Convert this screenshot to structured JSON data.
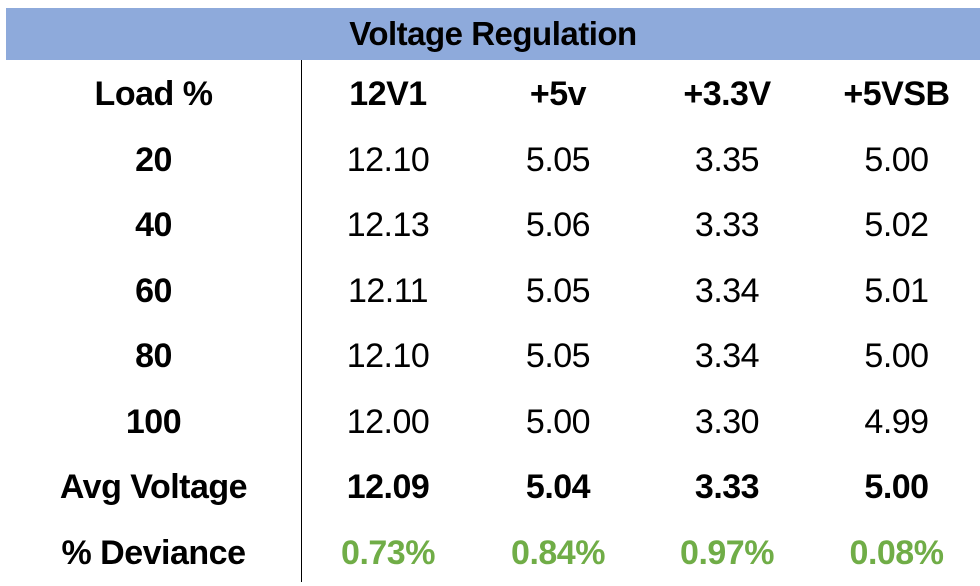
{
  "chart_data": {
    "type": "table",
    "title": "Voltage Regulation",
    "columns": [
      "Load %",
      "12V1",
      "+5v",
      "+3.3V",
      "+5VSB"
    ],
    "rows": [
      {
        "label": "20",
        "values": [
          "12.10",
          "5.05",
          "3.35",
          "5.00"
        ]
      },
      {
        "label": "40",
        "values": [
          "12.13",
          "5.06",
          "3.33",
          "5.02"
        ]
      },
      {
        "label": "60",
        "values": [
          "12.11",
          "5.05",
          "3.34",
          "5.01"
        ]
      },
      {
        "label": "80",
        "values": [
          "12.10",
          "5.05",
          "3.34",
          "5.00"
        ]
      },
      {
        "label": "100",
        "values": [
          "12.00",
          "5.00",
          "3.30",
          "4.99"
        ]
      }
    ],
    "avg_row": {
      "label": "Avg Voltage",
      "values": [
        "12.09",
        "5.04",
        "3.33",
        "5.00"
      ]
    },
    "deviance_row": {
      "label": "% Deviance",
      "values": [
        "0.73%",
        "0.84%",
        "0.97%",
        "0.08%"
      ]
    }
  },
  "colors": {
    "title_bar": "#8eaadb",
    "deviance_text": "#70ad47",
    "text": "#000000"
  }
}
